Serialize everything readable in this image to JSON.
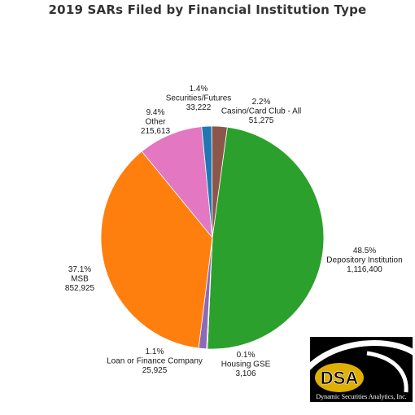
{
  "title": "2019 SARs Filed by Financial Institution Type",
  "chart_data": {
    "type": "pie",
    "title": "2019 SARs Filed by Financial Institution Type",
    "slices": [
      {
        "label": "Depository Institution",
        "percent": "48.5%",
        "count": "1,116,400",
        "value": 1116400,
        "color": "#2ca02c"
      },
      {
        "label": "Housing GSE",
        "percent": "0.1%",
        "count": "3,106",
        "value": 3106,
        "color": "#9467bd"
      },
      {
        "label": "Loan or Finance Company",
        "percent": "1.1%",
        "count": "25,925",
        "value": 25925,
        "color": "#8c6ab8"
      },
      {
        "label": "MSB",
        "percent": "37.1%",
        "count": "852,925",
        "value": 852925,
        "color": "#ff7f0e"
      },
      {
        "label": "Other",
        "percent": "9.4%",
        "count": "215,613",
        "value": 215613,
        "color": "#e377c2"
      },
      {
        "label": "Securities/Futures",
        "percent": "1.4%",
        "count": "33,222",
        "value": 33222,
        "color": "#1f77b4"
      },
      {
        "label": "Casino/Card Club - All",
        "percent": "2.2%",
        "count": "51,275",
        "value": 51275,
        "color": "#8c564b"
      }
    ]
  },
  "logo": {
    "letters": "DSA",
    "caption": "Dynamic Securities Analytics, Inc.",
    "accent_color": "#e0b000"
  }
}
